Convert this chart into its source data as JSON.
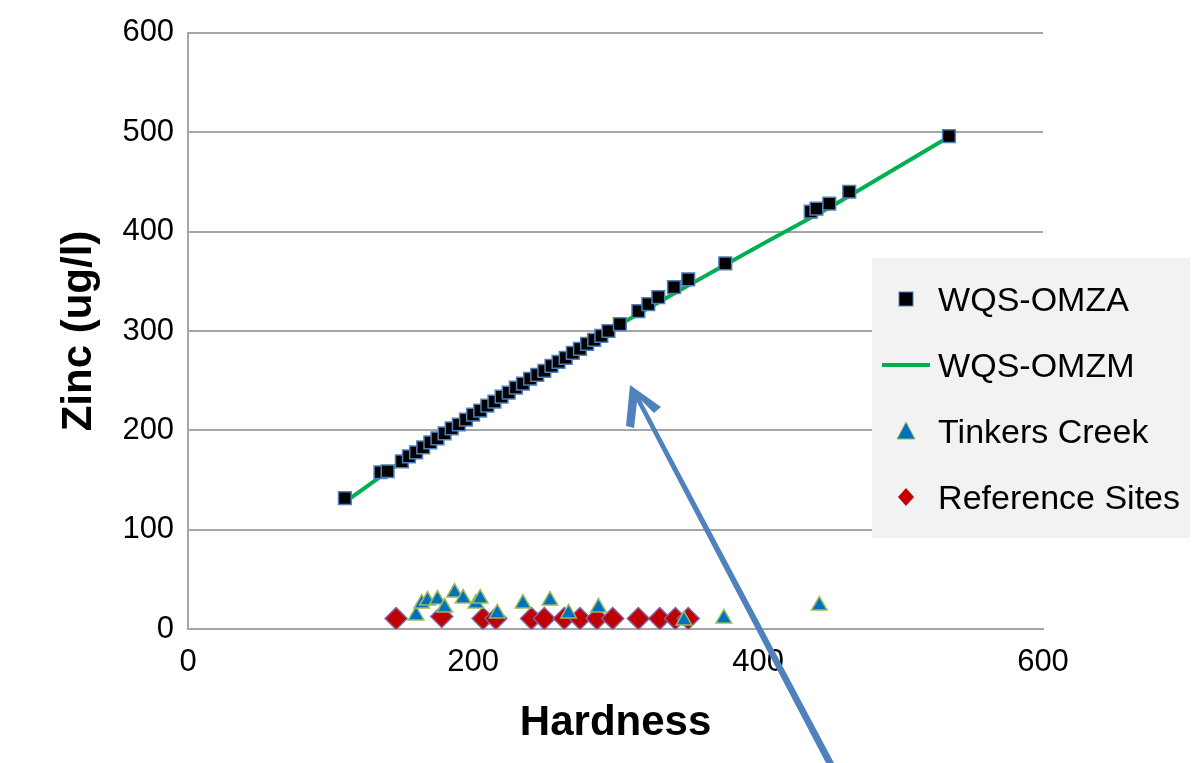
{
  "chart_data": {
    "type": "scatter",
    "xlabel": "Hardness",
    "ylabel": "Zinc (ug/l)",
    "xlim": [
      0,
      600
    ],
    "xticks": [
      0,
      200,
      400,
      600
    ],
    "ylim": [
      0,
      600
    ],
    "yticks": [
      0,
      100,
      200,
      300,
      400,
      500,
      600
    ],
    "grid": "y",
    "legend": "right",
    "series": [
      {
        "name": "WQS-OMZA",
        "marker": "square",
        "color": "#000000",
        "x": [
          110,
          135,
          140,
          150,
          155,
          160,
          165,
          170,
          175,
          180,
          185,
          190,
          195,
          200,
          205,
          210,
          215,
          220,
          225,
          230,
          235,
          240,
          245,
          250,
          255,
          260,
          265,
          270,
          275,
          280,
          285,
          290,
          295,
          303,
          316,
          323,
          330,
          341,
          351,
          377,
          437,
          441,
          450,
          464,
          534
        ],
        "values": [
          132,
          158,
          159,
          169,
          174,
          178,
          183,
          188,
          192,
          197,
          202,
          206,
          211,
          216,
          220,
          225,
          229,
          234,
          238,
          243,
          247,
          252,
          256,
          260,
          265,
          269,
          273,
          278,
          282,
          287,
          291,
          295,
          300,
          307,
          320,
          327,
          334,
          344,
          352,
          368,
          420,
          423,
          428,
          440,
          496
        ]
      },
      {
        "name": "WQS-OMZM",
        "type": "line",
        "marker": "none",
        "color": "#00b050",
        "x": [
          113,
          150,
          200,
          250,
          300,
          350,
          400,
          450,
          535
        ],
        "values": [
          131,
          169,
          216,
          260,
          304,
          345,
          385,
          424,
          496
        ]
      },
      {
        "name": "Tinkers Creek",
        "marker": "triangle",
        "color": "#0070c0",
        "x": [
          160,
          164,
          168,
          175,
          180,
          187,
          193,
          202,
          205,
          217,
          235,
          254,
          267,
          288,
          348,
          376,
          443
        ],
        "values": [
          14,
          26,
          29,
          30,
          22,
          37,
          31,
          26,
          31,
          16,
          26,
          29,
          16,
          22,
          9,
          11,
          24
        ]
      },
      {
        "name": "Reference Sites",
        "marker": "diamond",
        "color": "#c00000",
        "x": [
          146,
          178,
          207,
          216,
          241,
          250,
          264,
          275,
          287,
          298,
          316,
          331,
          342,
          351
        ],
        "values": [
          11,
          13,
          11,
          11,
          11,
          11,
          11,
          11,
          11,
          11,
          11,
          11,
          11,
          11
        ]
      }
    ]
  }
}
